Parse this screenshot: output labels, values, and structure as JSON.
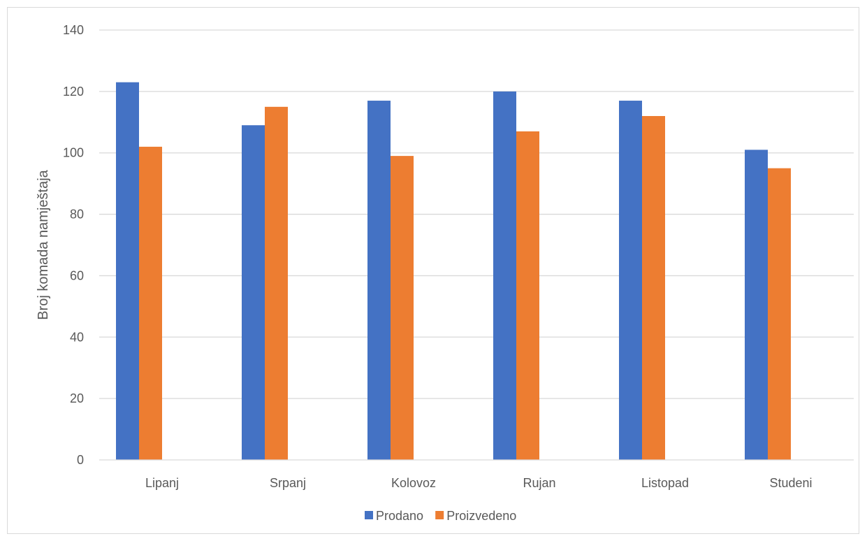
{
  "chart_data": {
    "type": "bar",
    "title": "",
    "xlabel": "",
    "ylabel": "Broj komada namještaja",
    "categories": [
      "Lipanj",
      "Srpanj",
      "Kolovoz",
      "Rujan",
      "Listopad",
      "Studeni"
    ],
    "series": [
      {
        "name": "Prodano",
        "color": "#4472c4",
        "values": [
          123,
          109,
          117,
          120,
          117,
          101
        ]
      },
      {
        "name": "Proizvedeno",
        "color": "#ed7d31",
        "values": [
          102,
          115,
          99,
          107,
          112,
          95
        ]
      }
    ],
    "ylim": [
      0,
      140
    ],
    "yticks": [
      0,
      20,
      40,
      60,
      80,
      100,
      120,
      140
    ],
    "grid": true,
    "legend_position": "bottom"
  }
}
